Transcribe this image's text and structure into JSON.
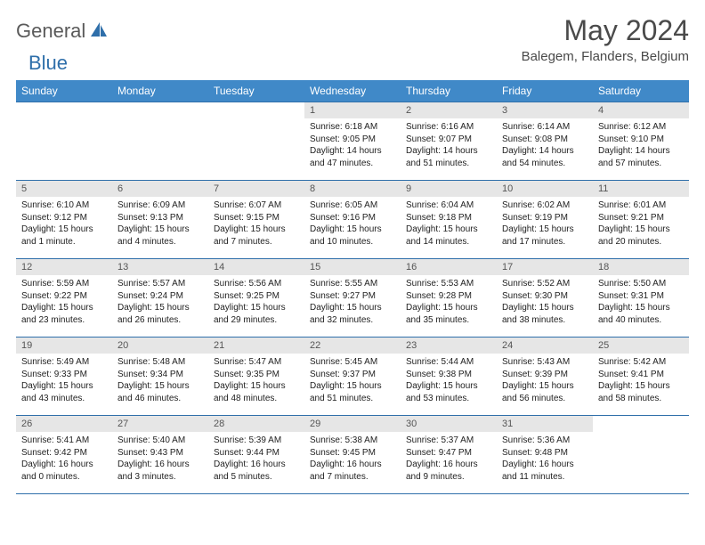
{
  "brand": {
    "name_a": "General",
    "name_b": "Blue"
  },
  "title": "May 2024",
  "location": "Balegem, Flanders, Belgium",
  "colors": {
    "header_bg": "#4089c8",
    "header_text": "#ffffff",
    "rule": "#2f6faa",
    "daynum_bg": "#e6e6e6",
    "daynum_text": "#555555",
    "body_text": "#222222",
    "title_text": "#4a4a4a",
    "logo_gray": "#5a5a5a",
    "logo_blue": "#2f6faa"
  },
  "weekdays": [
    "Sunday",
    "Monday",
    "Tuesday",
    "Wednesday",
    "Thursday",
    "Friday",
    "Saturday"
  ],
  "weeks": [
    [
      null,
      null,
      null,
      {
        "n": "1",
        "sr": "Sunrise: 6:18 AM",
        "ss": "Sunset: 9:05 PM",
        "d1": "Daylight: 14 hours",
        "d2": "and 47 minutes."
      },
      {
        "n": "2",
        "sr": "Sunrise: 6:16 AM",
        "ss": "Sunset: 9:07 PM",
        "d1": "Daylight: 14 hours",
        "d2": "and 51 minutes."
      },
      {
        "n": "3",
        "sr": "Sunrise: 6:14 AM",
        "ss": "Sunset: 9:08 PM",
        "d1": "Daylight: 14 hours",
        "d2": "and 54 minutes."
      },
      {
        "n": "4",
        "sr": "Sunrise: 6:12 AM",
        "ss": "Sunset: 9:10 PM",
        "d1": "Daylight: 14 hours",
        "d2": "and 57 minutes."
      }
    ],
    [
      {
        "n": "5",
        "sr": "Sunrise: 6:10 AM",
        "ss": "Sunset: 9:12 PM",
        "d1": "Daylight: 15 hours",
        "d2": "and 1 minute."
      },
      {
        "n": "6",
        "sr": "Sunrise: 6:09 AM",
        "ss": "Sunset: 9:13 PM",
        "d1": "Daylight: 15 hours",
        "d2": "and 4 minutes."
      },
      {
        "n": "7",
        "sr": "Sunrise: 6:07 AM",
        "ss": "Sunset: 9:15 PM",
        "d1": "Daylight: 15 hours",
        "d2": "and 7 minutes."
      },
      {
        "n": "8",
        "sr": "Sunrise: 6:05 AM",
        "ss": "Sunset: 9:16 PM",
        "d1": "Daylight: 15 hours",
        "d2": "and 10 minutes."
      },
      {
        "n": "9",
        "sr": "Sunrise: 6:04 AM",
        "ss": "Sunset: 9:18 PM",
        "d1": "Daylight: 15 hours",
        "d2": "and 14 minutes."
      },
      {
        "n": "10",
        "sr": "Sunrise: 6:02 AM",
        "ss": "Sunset: 9:19 PM",
        "d1": "Daylight: 15 hours",
        "d2": "and 17 minutes."
      },
      {
        "n": "11",
        "sr": "Sunrise: 6:01 AM",
        "ss": "Sunset: 9:21 PM",
        "d1": "Daylight: 15 hours",
        "d2": "and 20 minutes."
      }
    ],
    [
      {
        "n": "12",
        "sr": "Sunrise: 5:59 AM",
        "ss": "Sunset: 9:22 PM",
        "d1": "Daylight: 15 hours",
        "d2": "and 23 minutes."
      },
      {
        "n": "13",
        "sr": "Sunrise: 5:57 AM",
        "ss": "Sunset: 9:24 PM",
        "d1": "Daylight: 15 hours",
        "d2": "and 26 minutes."
      },
      {
        "n": "14",
        "sr": "Sunrise: 5:56 AM",
        "ss": "Sunset: 9:25 PM",
        "d1": "Daylight: 15 hours",
        "d2": "and 29 minutes."
      },
      {
        "n": "15",
        "sr": "Sunrise: 5:55 AM",
        "ss": "Sunset: 9:27 PM",
        "d1": "Daylight: 15 hours",
        "d2": "and 32 minutes."
      },
      {
        "n": "16",
        "sr": "Sunrise: 5:53 AM",
        "ss": "Sunset: 9:28 PM",
        "d1": "Daylight: 15 hours",
        "d2": "and 35 minutes."
      },
      {
        "n": "17",
        "sr": "Sunrise: 5:52 AM",
        "ss": "Sunset: 9:30 PM",
        "d1": "Daylight: 15 hours",
        "d2": "and 38 minutes."
      },
      {
        "n": "18",
        "sr": "Sunrise: 5:50 AM",
        "ss": "Sunset: 9:31 PM",
        "d1": "Daylight: 15 hours",
        "d2": "and 40 minutes."
      }
    ],
    [
      {
        "n": "19",
        "sr": "Sunrise: 5:49 AM",
        "ss": "Sunset: 9:33 PM",
        "d1": "Daylight: 15 hours",
        "d2": "and 43 minutes."
      },
      {
        "n": "20",
        "sr": "Sunrise: 5:48 AM",
        "ss": "Sunset: 9:34 PM",
        "d1": "Daylight: 15 hours",
        "d2": "and 46 minutes."
      },
      {
        "n": "21",
        "sr": "Sunrise: 5:47 AM",
        "ss": "Sunset: 9:35 PM",
        "d1": "Daylight: 15 hours",
        "d2": "and 48 minutes."
      },
      {
        "n": "22",
        "sr": "Sunrise: 5:45 AM",
        "ss": "Sunset: 9:37 PM",
        "d1": "Daylight: 15 hours",
        "d2": "and 51 minutes."
      },
      {
        "n": "23",
        "sr": "Sunrise: 5:44 AM",
        "ss": "Sunset: 9:38 PM",
        "d1": "Daylight: 15 hours",
        "d2": "and 53 minutes."
      },
      {
        "n": "24",
        "sr": "Sunrise: 5:43 AM",
        "ss": "Sunset: 9:39 PM",
        "d1": "Daylight: 15 hours",
        "d2": "and 56 minutes."
      },
      {
        "n": "25",
        "sr": "Sunrise: 5:42 AM",
        "ss": "Sunset: 9:41 PM",
        "d1": "Daylight: 15 hours",
        "d2": "and 58 minutes."
      }
    ],
    [
      {
        "n": "26",
        "sr": "Sunrise: 5:41 AM",
        "ss": "Sunset: 9:42 PM",
        "d1": "Daylight: 16 hours",
        "d2": "and 0 minutes."
      },
      {
        "n": "27",
        "sr": "Sunrise: 5:40 AM",
        "ss": "Sunset: 9:43 PM",
        "d1": "Daylight: 16 hours",
        "d2": "and 3 minutes."
      },
      {
        "n": "28",
        "sr": "Sunrise: 5:39 AM",
        "ss": "Sunset: 9:44 PM",
        "d1": "Daylight: 16 hours",
        "d2": "and 5 minutes."
      },
      {
        "n": "29",
        "sr": "Sunrise: 5:38 AM",
        "ss": "Sunset: 9:45 PM",
        "d1": "Daylight: 16 hours",
        "d2": "and 7 minutes."
      },
      {
        "n": "30",
        "sr": "Sunrise: 5:37 AM",
        "ss": "Sunset: 9:47 PM",
        "d1": "Daylight: 16 hours",
        "d2": "and 9 minutes."
      },
      {
        "n": "31",
        "sr": "Sunrise: 5:36 AM",
        "ss": "Sunset: 9:48 PM",
        "d1": "Daylight: 16 hours",
        "d2": "and 11 minutes."
      },
      null
    ]
  ]
}
